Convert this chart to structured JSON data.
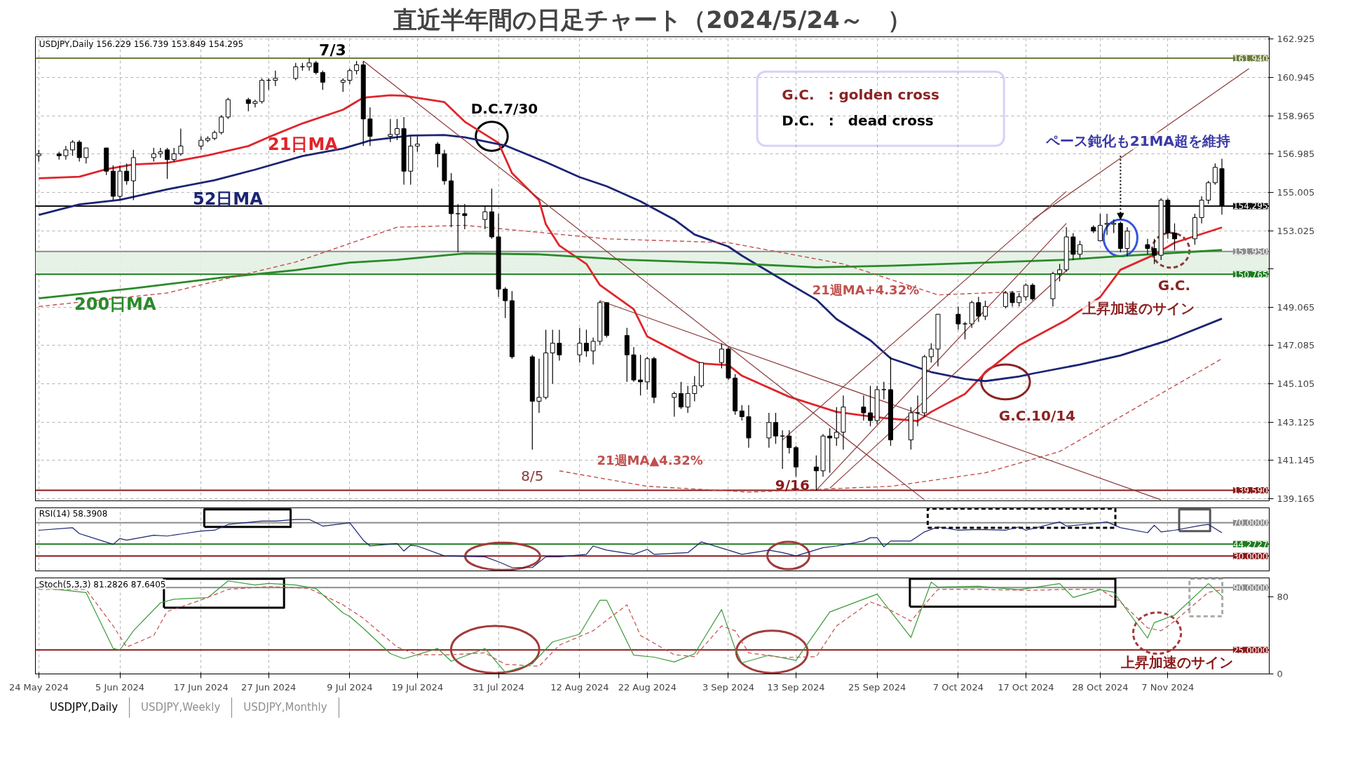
{
  "chart_data": [
    {
      "type": "candlestick",
      "title": "直近半年間の日足チャート（2024/5/24～　）",
      "x": [
        "2024-05-24",
        "2024-05-27",
        "2024-05-28",
        "2024-05-29",
        "2024-05-30",
        "2024-05-31",
        "2024-06-03",
        "2024-06-04",
        "2024-06-05",
        "2024-06-06",
        "2024-06-07",
        "2024-06-10",
        "2024-06-11",
        "2024-06-12",
        "2024-06-13",
        "2024-06-14",
        "2024-06-17",
        "2024-06-18",
        "2024-06-19",
        "2024-06-20",
        "2024-06-21",
        "2024-06-24",
        "2024-06-25",
        "2024-06-26",
        "2024-06-27",
        "2024-06-28",
        "2024-07-01",
        "2024-07-02",
        "2024-07-03",
        "2024-07-04",
        "2024-07-05",
        "2024-07-08",
        "2024-07-09",
        "2024-07-10",
        "2024-07-11",
        "2024-07-12",
        "2024-07-15",
        "2024-07-16",
        "2024-07-17",
        "2024-07-18",
        "2024-07-19",
        "2024-07-22",
        "2024-07-23",
        "2024-07-24",
        "2024-07-25",
        "2024-07-26",
        "2024-07-29",
        "2024-07-30",
        "2024-07-31",
        "2024-08-01",
        "2024-08-02",
        "2024-08-05",
        "2024-08-06",
        "2024-08-07",
        "2024-08-08",
        "2024-08-09",
        "2024-08-12",
        "2024-08-13",
        "2024-08-14",
        "2024-08-15",
        "2024-08-16",
        "2024-08-19",
        "2024-08-20",
        "2024-08-21",
        "2024-08-22",
        "2024-08-23",
        "2024-08-26",
        "2024-08-27",
        "2024-08-28",
        "2024-08-29",
        "2024-08-30",
        "2024-09-02",
        "2024-09-03",
        "2024-09-04",
        "2024-09-05",
        "2024-09-06",
        "2024-09-09",
        "2024-09-10",
        "2024-09-11",
        "2024-09-12",
        "2024-09-13",
        "2024-09-16",
        "2024-09-17",
        "2024-09-18",
        "2024-09-19",
        "2024-09-20",
        "2024-09-23",
        "2024-09-24",
        "2024-09-25",
        "2024-09-26",
        "2024-09-27",
        "2024-09-30",
        "2024-10-01",
        "2024-10-02",
        "2024-10-03",
        "2024-10-04",
        "2024-10-07",
        "2024-10-08",
        "2024-10-09",
        "2024-10-10",
        "2024-10-11",
        "2024-10-14",
        "2024-10-15",
        "2024-10-16",
        "2024-10-17",
        "2024-10-18",
        "2024-10-21",
        "2024-10-22",
        "2024-10-23",
        "2024-10-24",
        "2024-10-25",
        "2024-10-27",
        "2024-10-28",
        "2024-10-29",
        "2024-10-30",
        "2024-10-31",
        "2024-11-01",
        "2024-11-04",
        "2024-11-05",
        "2024-11-06",
        "2024-11-07",
        "2024-11-08",
        "2024-11-11",
        "2024-11-12",
        "2024-11-13",
        "2024-11-14",
        "2024-11-15"
      ],
      "ohlc": [
        [
          156.9,
          157.2,
          156.6,
          157.0
        ],
        [
          157.0,
          157.1,
          156.7,
          156.9
        ],
        [
          156.9,
          157.4,
          156.7,
          157.2
        ],
        [
          157.2,
          157.7,
          156.9,
          157.6
        ],
        [
          157.6,
          157.7,
          156.6,
          156.8
        ],
        [
          156.8,
          157.3,
          156.5,
          157.3
        ],
        [
          157.3,
          157.3,
          155.9,
          156.1
        ],
        [
          156.1,
          156.4,
          154.6,
          154.8
        ],
        [
          154.8,
          156.4,
          154.6,
          156.1
        ],
        [
          156.1,
          156.5,
          155.4,
          155.6
        ],
        [
          155.6,
          157.2,
          154.6,
          156.8
        ],
        [
          156.8,
          157.3,
          156.6,
          157.0
        ],
        [
          157.0,
          157.3,
          156.8,
          157.1
        ],
        [
          157.2,
          157.3,
          155.7,
          156.7
        ],
        [
          156.7,
          157.3,
          156.6,
          157.0
        ],
        [
          157.0,
          158.3,
          156.9,
          157.4
        ],
        [
          157.4,
          157.9,
          157.2,
          157.7
        ],
        [
          157.7,
          157.9,
          157.6,
          157.8
        ],
        [
          157.8,
          158.2,
          157.7,
          158.1
        ],
        [
          158.1,
          159.0,
          158.0,
          158.9
        ],
        [
          158.9,
          159.9,
          158.8,
          159.8
        ],
        [
          159.8,
          159.9,
          159.2,
          159.6
        ],
        [
          159.6,
          159.8,
          159.4,
          159.7
        ],
        [
          159.7,
          160.9,
          159.6,
          160.8
        ],
        [
          160.8,
          160.9,
          160.3,
          160.8
        ],
        [
          160.8,
          161.3,
          160.5,
          160.9
        ],
        [
          160.9,
          161.7,
          160.8,
          161.5
        ],
        [
          161.5,
          161.7,
          161.3,
          161.5
        ],
        [
          161.5,
          161.94,
          161.3,
          161.7
        ],
        [
          161.7,
          161.8,
          161.1,
          161.2
        ],
        [
          161.2,
          161.3,
          160.3,
          160.7
        ],
        [
          160.7,
          160.9,
          160.2,
          160.8
        ],
        [
          160.8,
          161.4,
          160.6,
          161.3
        ],
        [
          161.3,
          161.8,
          161.1,
          161.6
        ],
        [
          161.6,
          161.8,
          157.4,
          158.8
        ],
        [
          158.8,
          159.4,
          157.4,
          157.9
        ],
        [
          157.9,
          158.8,
          157.6,
          158.0
        ],
        [
          158.0,
          158.8,
          157.7,
          158.3
        ],
        [
          158.3,
          158.9,
          155.4,
          156.1
        ],
        [
          156.1,
          157.9,
          155.4,
          157.4
        ],
        [
          157.4,
          157.9,
          157.1,
          157.5
        ],
        [
          157.5,
          157.6,
          156.3,
          157.0
        ],
        [
          157.0,
          157.2,
          155.4,
          155.6
        ],
        [
          155.6,
          156.0,
          153.2,
          153.9
        ],
        [
          153.9,
          154.4,
          151.9,
          153.9
        ],
        [
          153.9,
          154.4,
          153.1,
          153.8
        ],
        [
          153.6,
          154.3,
          153.1,
          154.0
        ],
        [
          154.0,
          155.2,
          152.6,
          152.7
        ],
        [
          152.7,
          153.9,
          149.6,
          150.0
        ],
        [
          150.0,
          150.1,
          148.5,
          149.4
        ],
        [
          149.4,
          149.9,
          146.4,
          146.5
        ],
        [
          146.5,
          146.6,
          141.7,
          144.2
        ],
        [
          144.2,
          146.4,
          143.6,
          144.4
        ],
        [
          144.4,
          147.9,
          144.3,
          146.7
        ],
        [
          146.7,
          147.9,
          145.1,
          147.2
        ],
        [
          147.2,
          147.9,
          146.3,
          146.6
        ],
        [
          146.6,
          148.0,
          146.2,
          147.2
        ],
        [
          147.2,
          147.9,
          146.5,
          146.8
        ],
        [
          146.8,
          147.5,
          146.1,
          147.3
        ],
        [
          147.3,
          149.4,
          147.1,
          149.3
        ],
        [
          149.3,
          149.3,
          147.5,
          147.6
        ],
        [
          147.6,
          148.0,
          145.2,
          146.6
        ],
        [
          146.6,
          147.0,
          145.2,
          145.3
        ],
        [
          145.3,
          146.6,
          144.5,
          145.2
        ],
        [
          145.2,
          146.5,
          144.8,
          146.4
        ],
        [
          146.4,
          146.5,
          144.1,
          144.4
        ],
        [
          144.4,
          144.7,
          143.4,
          144.6
        ],
        [
          144.6,
          145.2,
          143.8,
          143.9
        ],
        [
          143.9,
          145.0,
          143.6,
          144.6
        ],
        [
          144.6,
          145.5,
          144.2,
          145.0
        ],
        [
          145.0,
          146.2,
          144.9,
          146.2
        ],
        [
          146.2,
          147.2,
          145.9,
          146.9
        ],
        [
          146.9,
          147.0,
          145.3,
          145.4
        ],
        [
          145.4,
          145.6,
          143.5,
          143.7
        ],
        [
          143.7,
          144.0,
          143.2,
          143.4
        ],
        [
          143.4,
          144.0,
          141.8,
          142.3
        ],
        [
          142.3,
          143.6,
          141.8,
          143.1
        ],
        [
          143.1,
          143.6,
          142.0,
          142.4
        ],
        [
          142.4,
          142.7,
          140.7,
          142.4
        ],
        [
          142.4,
          142.7,
          141.5,
          141.8
        ],
        [
          141.8,
          141.9,
          140.3,
          140.8
        ],
        [
          140.8,
          141.4,
          139.58,
          140.6
        ],
        [
          140.6,
          142.5,
          140.3,
          142.4
        ],
        [
          142.4,
          142.8,
          140.5,
          142.3
        ],
        [
          142.3,
          143.9,
          141.9,
          142.6
        ],
        [
          142.6,
          144.5,
          141.7,
          143.9
        ],
        [
          143.9,
          144.5,
          143.2,
          143.6
        ],
        [
          143.6,
          145.0,
          142.9,
          143.2
        ],
        [
          143.2,
          145.0,
          143.0,
          144.8
        ],
        [
          144.8,
          145.2,
          144.3,
          144.8
        ],
        [
          144.8,
          146.5,
          141.9,
          142.2
        ],
        [
          142.2,
          143.9,
          141.7,
          143.6
        ],
        [
          143.6,
          144.5,
          142.9,
          143.6
        ],
        [
          143.6,
          146.6,
          143.4,
          146.5
        ],
        [
          146.5,
          147.2,
          146.2,
          146.9
        ],
        [
          146.9,
          148.7,
          146.0,
          148.7
        ],
        [
          148.7,
          149.1,
          147.9,
          148.2
        ],
        [
          148.2,
          148.3,
          147.4,
          148.2
        ],
        [
          148.2,
          149.4,
          148.0,
          149.3
        ],
        [
          149.3,
          149.6,
          148.3,
          148.6
        ],
        [
          148.6,
          149.4,
          148.4,
          149.1
        ],
        [
          149.1,
          149.9,
          149.0,
          149.8
        ],
        [
          149.8,
          149.9,
          149.1,
          149.3
        ],
        [
          149.3,
          149.8,
          149.1,
          149.6
        ],
        [
          149.6,
          150.3,
          149.4,
          150.2
        ],
        [
          150.2,
          150.3,
          149.4,
          149.5
        ],
        [
          149.5,
          150.9,
          149.1,
          150.8
        ],
        [
          150.8,
          151.3,
          150.4,
          151.0
        ],
        [
          151.0,
          153.2,
          150.9,
          152.7
        ],
        [
          152.7,
          152.9,
          151.5,
          151.8
        ],
        [
          151.8,
          152.5,
          151.6,
          152.3
        ],
        [
          153.2,
          153.3,
          152.9,
          153.0
        ],
        [
          152.5,
          153.9,
          152.5,
          153.3
        ],
        [
          153.35,
          153.9,
          152.8,
          153.4
        ],
        [
          153.35,
          153.6,
          152.9,
          153.4
        ],
        [
          153.4,
          153.5,
          151.9,
          152.1
        ],
        [
          152.1,
          153.2,
          151.7,
          153.0
        ],
        [
          152.3,
          152.6,
          151.8,
          152.1
        ],
        [
          152.1,
          152.6,
          151.3,
          151.75
        ],
        [
          151.75,
          154.7,
          151.5,
          154.6
        ],
        [
          154.6,
          154.7,
          152.6,
          152.9
        ],
        [
          152.9,
          153.4,
          152.0,
          152.6
        ],
        [
          152.6,
          153.9,
          152.3,
          153.7
        ],
        [
          153.7,
          154.8,
          153.4,
          154.6
        ],
        [
          154.6,
          155.6,
          154.4,
          155.5
        ],
        [
          155.5,
          156.5,
          155.4,
          156.3
        ],
        [
          156.229,
          156.739,
          153.849,
          154.295
        ]
      ],
      "series": [
        {
          "name": "21日MA",
          "color": "#e0252b",
          "type": "line",
          "x": [
            "2024-05-24",
            "2024-05-30",
            "2024-06-03",
            "2024-06-07",
            "2024-06-12",
            "2024-06-18",
            "2024-06-24",
            "2024-06-27",
            "2024-07-02",
            "2024-07-08",
            "2024-07-11",
            "2024-07-15",
            "2024-07-17",
            "2024-07-23",
            "2024-07-26",
            "2024-07-31",
            "2024-08-02",
            "2024-08-06",
            "2024-08-07",
            "2024-08-09",
            "2024-08-13",
            "2024-08-15",
            "2024-08-20",
            "2024-08-22",
            "2024-08-28",
            "2024-08-30",
            "2024-09-03",
            "2024-09-05",
            "2024-09-12",
            "2024-09-19",
            "2024-09-24",
            "2024-09-26",
            "2024-10-01",
            "2024-10-03",
            "2024-10-08",
            "2024-10-11",
            "2024-10-16",
            "2024-10-23",
            "2024-10-28",
            "2024-10-31",
            "2024-11-05",
            "2024-11-08",
            "2024-11-15"
          ],
          "values": [
            155.73,
            155.81,
            156.2,
            156.45,
            156.53,
            156.92,
            157.4,
            157.86,
            158.57,
            159.28,
            159.9,
            160.03,
            160.0,
            159.67,
            158.66,
            157.56,
            156.0,
            154.6,
            153.35,
            152.25,
            151.3,
            150.21,
            148.96,
            147.55,
            146.46,
            146.15,
            146.07,
            145.52,
            144.43,
            143.65,
            143.41,
            143.33,
            143.18,
            143.65,
            144.58,
            145.68,
            147.09,
            148.4,
            149.59,
            151.0,
            151.78,
            152.4,
            153.19
          ]
        },
        {
          "name": "52日MA",
          "color": "#1c2473",
          "type": "line",
          "x": [
            "2024-05-24",
            "2024-05-30",
            "2024-06-05",
            "2024-06-12",
            "2024-06-19",
            "2024-06-25",
            "2024-07-02",
            "2024-07-08",
            "2024-07-11",
            "2024-07-12",
            "2024-07-18",
            "2024-07-23",
            "2024-07-26",
            "2024-08-01",
            "2024-08-07",
            "2024-08-12",
            "2024-08-16",
            "2024-08-21",
            "2024-08-26",
            "2024-08-29",
            "2024-09-03",
            "2024-09-05",
            "2024-09-11",
            "2024-09-16",
            "2024-09-19",
            "2024-09-24",
            "2024-09-27",
            "2024-10-03",
            "2024-10-08",
            "2024-10-11",
            "2024-10-16",
            "2024-10-18",
            "2024-10-25",
            "2024-10-31",
            "2024-11-07",
            "2024-11-15"
          ],
          "values": [
            153.84,
            154.38,
            154.62,
            155.16,
            155.63,
            156.18,
            156.88,
            157.27,
            157.58,
            157.69,
            157.94,
            157.97,
            157.85,
            157.43,
            156.57,
            155.79,
            155.32,
            154.54,
            153.6,
            152.82,
            152.2,
            151.73,
            150.48,
            149.46,
            148.45,
            147.35,
            146.42,
            145.71,
            145.35,
            145.24,
            145.48,
            145.63,
            146.1,
            146.57,
            147.35,
            148.47
          ]
        },
        {
          "name": "200日MA",
          "color": "#2a8a2a",
          "type": "line",
          "x": [
            "2024-05-24",
            "2024-06-07",
            "2024-06-20",
            "2024-07-01",
            "2024-07-09",
            "2024-07-16",
            "2024-07-26",
            "2024-08-06",
            "2024-08-19",
            "2024-09-03",
            "2024-09-16",
            "2024-09-27",
            "2024-10-11",
            "2024-10-23",
            "2024-10-31",
            "2024-11-15"
          ],
          "values": [
            149.52,
            150.04,
            150.59,
            150.98,
            151.37,
            151.52,
            151.84,
            151.8,
            151.52,
            151.34,
            151.13,
            151.21,
            151.37,
            151.52,
            151.71,
            152.02
          ]
        },
        {
          "name": "21週MA+4.32%",
          "color": "#c0504d",
          "type": "line",
          "line_style": "dashed",
          "x": [
            "2024-05-24",
            "2024-06-12",
            "2024-07-01",
            "2024-07-16",
            "2024-07-26",
            "2024-08-16",
            "2024-09-03",
            "2024-09-20",
            "2024-10-04",
            "2024-10-18"
          ],
          "values": [
            149.1,
            149.8,
            151.4,
            153.2,
            153.3,
            152.6,
            152.4,
            151.3,
            149.7,
            149.9
          ]
        },
        {
          "name": "21週MA▲4.32%",
          "color": "#c0504d",
          "type": "line",
          "line_style": "dashed",
          "x": [
            "2024-08-09",
            "2024-08-22",
            "2024-09-06",
            "2024-09-27",
            "2024-10-11",
            "2024-10-22",
            "2024-11-15"
          ],
          "values": [
            140.6,
            139.8,
            139.5,
            139.8,
            140.5,
            141.6,
            146.4
          ]
        },
        {
          "color": "#8b3a3a",
          "type": "line",
          "x": [
            "2024-07-11",
            "2024-10-02"
          ],
          "values": [
            161.8,
            139.1
          ]
        },
        {
          "color": "#8b3a3a",
          "type": "line",
          "x": [
            "2024-08-15",
            "2024-11-06"
          ],
          "values": [
            149.4,
            139.1
          ]
        },
        {
          "color": "#8b3a3a",
          "type": "line",
          "x": [
            "2024-09-16",
            "2024-10-23"
          ],
          "values": [
            139.6,
            153.4
          ]
        },
        {
          "color": "#8b3a3a",
          "type": "line",
          "x": [
            "2024-10-18",
            "2024-11-19"
          ],
          "values": [
            153.6,
            161.4
          ]
        },
        {
          "color": "#8b3a3a",
          "type": "line",
          "x": [
            "2024-09-11",
            "2024-10-23"
          ],
          "values": [
            142.2,
            155.05
          ]
        },
        {
          "color": "#8b3a3a",
          "type": "line",
          "x": [
            "2024-09-18",
            "2024-10-23"
          ],
          "values": [
            139.7,
            150.96
          ]
        }
      ],
      "xlim": [
        "2024-05-23T12:00",
        "2024-11-22T00:00"
      ],
      "ylim": [
        139.05,
        163.05
      ],
      "xticks": [
        "2024-05-24",
        "2024-06-05",
        "2024-06-17",
        "2024-06-27",
        "2024-07-09",
        "2024-07-19",
        "2024-07-31",
        "2024-08-12",
        "2024-08-22",
        "2024-09-03",
        "2024-09-13",
        "2024-09-25",
        "2024-10-07",
        "2024-10-17",
        "2024-10-28",
        "2024-11-07"
      ],
      "yticks": [
        162.925,
        160.945,
        158.965,
        156.985,
        155.005,
        153.025,
        {
          "value": 151.045,
          "label": null
        },
        149.065,
        147.085,
        145.105,
        143.125,
        141.145,
        139.165
      ],
      "tick_labels": "y",
      "grid": true,
      "ref_lines": [
        {
          "axis": "y",
          "value": 161.94,
          "label": "161.940",
          "color": "#6b7d3a"
        },
        {
          "axis": "y",
          "value": 154.295,
          "label": "154.295",
          "color": "#111111"
        },
        {
          "axis": "y",
          "value": 151.95,
          "label": "151.950",
          "color": "#8c8c8c"
        },
        {
          "axis": "y",
          "value": 150.765,
          "label": "150.765",
          "color": "#1e7b1e"
        },
        {
          "axis": "y",
          "value": 139.59,
          "label": "139.590",
          "color": "#8b1a1a"
        }
      ],
      "bands": [
        {
          "axis": "y",
          "from": 150.765,
          "to": 151.95,
          "color": "#e3f1e3"
        }
      ],
      "annotations": [
        "USDJPY,Daily  156.229 156.739 153.849 154.295",
        {
          "text": "7/3",
          "x": "2024-07-03",
          "y": 161.94
        },
        {
          "text": "8/5",
          "x": "2024-08-05",
          "y": 141.7
        },
        {
          "text": "9/16",
          "x": "2024-09-16",
          "y": 139.58
        },
        {
          "text": "D.C.7/30",
          "x": "2024-07-30",
          "y": 157.9
        },
        {
          "text": "G.C.10/14",
          "x": "2024-10-14",
          "y": 145.2
        },
        "G.C.　: golden cross",
        "D.C.　:　dead cross",
        {
          "text": "ペース鈍化も21MA超を維持",
          "x": "2024-10-31",
          "y": 153.6
        },
        "G.C.",
        "上昇加速のサイン"
      ]
    },
    {
      "type": "line",
      "title": "RSI(14) 58.3908",
      "series": [
        {
          "color": "#1c2473",
          "x": [
            "2024-05-24",
            "2024-05-29",
            "2024-05-30",
            "2024-06-04",
            "2024-06-05",
            "2024-06-06",
            "2024-06-10",
            "2024-06-12",
            "2024-06-17",
            "2024-06-19",
            "2024-06-21",
            "2024-06-26",
            "2024-06-28",
            "2024-07-01",
            "2024-07-03",
            "2024-07-05",
            "2024-07-09",
            "2024-07-11",
            "2024-07-12",
            "2024-07-16",
            "2024-07-17",
            "2024-07-18",
            "2024-07-19",
            "2024-07-23",
            "2024-07-29",
            "2024-07-31",
            "2024-08-02",
            "2024-08-05",
            "2024-08-07",
            "2024-08-09",
            "2024-08-13",
            "2024-08-14",
            "2024-08-16",
            "2024-08-20",
            "2024-08-22",
            "2024-08-23",
            "2024-08-28",
            "2024-08-30",
            "2024-09-03",
            "2024-09-05",
            "2024-09-09",
            "2024-09-11",
            "2024-09-13",
            "2024-09-17",
            "2024-09-19",
            "2024-09-23",
            "2024-09-24",
            "2024-09-25",
            "2024-09-26",
            "2024-09-27",
            "2024-09-30",
            "2024-10-02",
            "2024-10-04",
            "2024-10-07",
            "2024-10-10",
            "2024-10-14",
            "2024-10-16",
            "2024-10-17",
            "2024-10-22",
            "2024-10-23",
            "2024-10-27",
            "2024-10-29",
            "2024-10-31",
            "2024-11-04",
            "2024-11-05",
            "2024-11-06",
            "2024-11-08",
            "2024-11-12",
            "2024-11-13",
            "2024-11-15"
          ],
          "values": [
            61,
            64,
            57,
            44,
            51,
            49,
            55,
            54,
            60,
            61,
            68,
            72,
            72,
            74,
            74,
            66,
            70,
            49,
            42,
            45,
            36,
            43,
            42,
            30,
            29,
            23,
            16,
            16,
            29,
            29,
            32,
            42,
            37,
            32,
            38,
            32,
            34,
            47,
            37,
            32,
            37,
            34,
            30,
            40,
            42,
            48,
            52,
            52,
            41,
            48,
            48,
            59,
            65,
            61,
            62,
            61,
            65,
            61,
            71,
            66,
            69,
            71,
            64,
            58,
            67,
            59,
            61,
            67,
            68,
            58
          ]
        }
      ],
      "xlim": [
        "2024-05-23T12:00",
        "2024-11-22T00:00"
      ],
      "ylim": [
        12,
        88
      ],
      "xticks": [
        "2024-05-24",
        "2024-06-05",
        "2024-06-17",
        "2024-06-27",
        "2024-07-09",
        "2024-07-19",
        "2024-07-31",
        "2024-08-12",
        "2024-08-22",
        "2024-09-03",
        "2024-09-13",
        "2024-09-25",
        "2024-10-07",
        "2024-10-17",
        "2024-10-28",
        "2024-11-07"
      ],
      "tick_labels": false,
      "grid": "x",
      "ref_lines": [
        {
          "axis": "y",
          "value": 70,
          "label": "70.0000",
          "color": "#8c8c8c"
        },
        {
          "axis": "y",
          "value": 44.2727,
          "label": "44.2727",
          "color": "#1e7b1e"
        },
        {
          "axis": "y",
          "value": 30,
          "label": "30.0000",
          "color": "#8b1a1a"
        }
      ]
    },
    {
      "type": "line",
      "title": "Stoch(5,3,3) 81.2826 87.6405",
      "series": [
        {
          "color": "#3a9a3a",
          "x": [
            "2024-05-24",
            "2024-05-31",
            "2024-06-04",
            "2024-06-05",
            "2024-06-07",
            "2024-06-11",
            "2024-06-13",
            "2024-06-18",
            "2024-06-21",
            "2024-06-25",
            "2024-06-27",
            "2024-07-01",
            "2024-07-04",
            "2024-07-08",
            "2024-07-09",
            "2024-07-11",
            "2024-07-15",
            "2024-07-17",
            "2024-07-22",
            "2024-07-24",
            "2024-07-29",
            "2024-08-01",
            "2024-08-05",
            "2024-08-08",
            "2024-08-12",
            "2024-08-15",
            "2024-08-16",
            "2024-08-20",
            "2024-08-23",
            "2024-08-26",
            "2024-08-29",
            "2024-09-02",
            "2024-09-04",
            "2024-09-05",
            "2024-09-09",
            "2024-09-13",
            "2024-09-18",
            "2024-09-23",
            "2024-09-25",
            "2024-09-30",
            "2024-10-03",
            "2024-10-04",
            "2024-10-10",
            "2024-10-16",
            "2024-10-22",
            "2024-10-24",
            "2024-10-28",
            "2024-10-30",
            "2024-11-04",
            "2024-11-05",
            "2024-11-08",
            "2024-11-13",
            "2024-11-15"
          ],
          "values": [
            90,
            84.7,
            26.6,
            25,
            45,
            74.1,
            77.8,
            79.4,
            96.9,
            92.6,
            94.2,
            92.6,
            88.9,
            63.5,
            59.8,
            47.6,
            21.2,
            15.9,
            26.5,
            13.3,
            26.5,
            1.7,
            10.6,
            33.4,
            41.4,
            76.8,
            76.8,
            19.6,
            17.5,
            12.5,
            21,
            67.1,
            26.3,
            11.5,
            19.5,
            14.2,
            64.5,
            77.8,
            83.1,
            38,
            95.7,
            90.4,
            91.4,
            87.7,
            94.1,
            79.7,
            87.7,
            85.1,
            37.4,
            53.4,
            61.3,
            94.1,
            81.3
          ]
        },
        {
          "color": "#c0504d",
          "line_style": "dashed",
          "x": [
            "2024-05-24",
            "2024-05-31",
            "2024-06-04",
            "2024-06-06",
            "2024-06-10",
            "2024-06-12",
            "2024-06-17",
            "2024-06-21",
            "2024-06-27",
            "2024-07-03",
            "2024-07-08",
            "2024-07-11",
            "2024-07-16",
            "2024-07-19",
            "2024-07-24",
            "2024-07-29",
            "2024-08-01",
            "2024-08-06",
            "2024-08-09",
            "2024-08-14",
            "2024-08-19",
            "2024-08-21",
            "2024-08-26",
            "2024-08-29",
            "2024-09-02",
            "2024-09-04",
            "2024-09-06",
            "2024-09-11",
            "2024-09-16",
            "2024-09-19",
            "2024-09-24",
            "2024-09-26",
            "2024-09-30",
            "2024-10-02",
            "2024-10-04",
            "2024-10-11",
            "2024-10-17",
            "2024-10-23",
            "2024-10-28",
            "2024-10-31",
            "2024-11-04",
            "2024-11-06",
            "2024-11-08",
            "2024-11-13",
            "2024-11-15"
          ],
          "values": [
            88,
            88,
            50,
            28,
            40,
            65,
            77,
            88,
            91,
            89,
            72,
            58,
            28,
            20,
            20,
            22,
            10,
            8,
            30,
            45,
            72,
            40,
            20,
            18,
            50,
            45,
            22,
            17,
            18,
            50,
            75,
            70,
            55,
            72,
            88,
            88,
            87,
            88,
            88,
            75,
            48,
            45,
            55,
            85,
            87.6
          ]
        }
      ],
      "xlim": [
        "2024-05-23T12:00",
        "2024-11-22T00:00"
      ],
      "ylim": [
        0,
        100
      ],
      "xticks": [
        {
          "value": "2024-05-24",
          "label": "24 May 2024"
        },
        {
          "value": "2024-06-05",
          "label": "5 Jun 2024"
        },
        {
          "value": "2024-06-17",
          "label": "17 Jun 2024"
        },
        {
          "value": "2024-06-27",
          "label": "27 Jun 2024"
        },
        {
          "value": "2024-07-09",
          "label": "9 Jul 2024"
        },
        {
          "value": "2024-07-19",
          "label": "19 Jul 2024"
        },
        {
          "value": "2024-07-31",
          "label": "31 Jul 2024"
        },
        {
          "value": "2024-08-12",
          "label": "12 Aug 2024"
        },
        {
          "value": "2024-08-22",
          "label": "22 Aug 2024"
        },
        {
          "value": "2024-09-03",
          "label": "3 Sep 2024"
        },
        {
          "value": "2024-09-13",
          "label": "13 Sep 2024"
        },
        {
          "value": "2024-09-25",
          "label": "25 Sep 2024"
        },
        {
          "value": "2024-10-07",
          "label": "7 Oct 2024"
        },
        {
          "value": "2024-10-17",
          "label": "17 Oct 2024"
        },
        {
          "value": "2024-10-28",
          "label": "28 Oct 2024"
        },
        {
          "value": "2024-11-07",
          "label": "7 Nov 2024"
        }
      ],
      "yticks": [
        0,
        80
      ],
      "grid": "x",
      "ref_lines": [
        {
          "axis": "y",
          "value": 90,
          "label": "90.0000",
          "color": "#8c8c8c"
        },
        {
          "axis": "y",
          "value": 25,
          "label": "25.0000",
          "color": "#8b1a1a"
        }
      ],
      "annotations": [
        "上昇加速のサイン",
        "USDJPY,Daily",
        "USDJPY,Weekly",
        "USDJPY,Monthly"
      ]
    }
  ]
}
